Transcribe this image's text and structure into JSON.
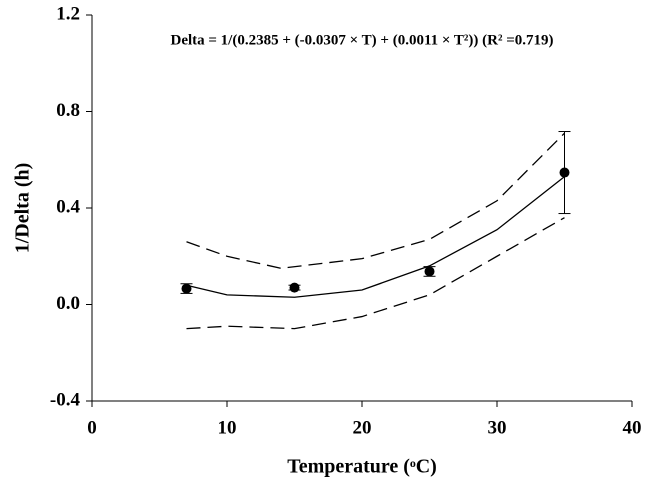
{
  "chart_data": {
    "type": "scatter-fit",
    "annotation": "Delta = 1/(0.2385 + (-0.0307 × T) + (0.0011 × T²)) (R² =0.719)",
    "xlabel": "Temperature (ᵒC)",
    "ylabel": "1/Delta (h)",
    "xlim": [
      0,
      40
    ],
    "xticks": [
      0,
      10,
      20,
      30,
      40
    ],
    "ylim": [
      -0.4,
      1.2
    ],
    "yticks": [
      -0.4,
      {
        "value": 0,
        "label": "0.0"
      },
      0.4,
      0.8,
      1.2
    ],
    "color": "#000000",
    "points": {
      "x": [
        7,
        15,
        25,
        35
      ],
      "values": [
        0.066,
        0.07,
        0.137,
        0.547
      ],
      "errors": [
        0.02,
        0.01,
        0.02,
        0.17
      ]
    },
    "series": [
      {
        "style": "solid",
        "x": [
          7,
          10,
          15,
          20,
          25,
          30,
          35
        ],
        "values": [
          0.08,
          0.04,
          0.03,
          0.06,
          0.16,
          0.31,
          0.53
        ]
      },
      {
        "style": "dashed",
        "x": [
          7,
          10,
          14,
          20,
          25,
          30,
          35
        ],
        "values": [
          0.26,
          0.2,
          0.15,
          0.19,
          0.27,
          0.43,
          0.71
        ]
      },
      {
        "style": "dashed",
        "x": [
          7,
          10,
          15,
          20,
          25,
          30,
          35
        ],
        "values": [
          -0.1,
          -0.09,
          -0.1,
          -0.05,
          0.04,
          0.2,
          0.36
        ]
      }
    ]
  }
}
